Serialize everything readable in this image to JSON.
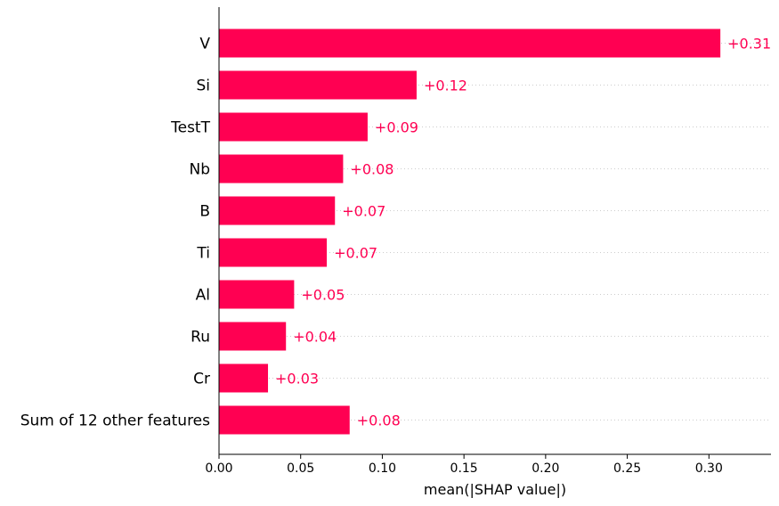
{
  "chart_data": {
    "type": "bar",
    "orientation": "horizontal",
    "categories": [
      "V",
      "Si",
      "TestT",
      "Nb",
      "B",
      "Ti",
      "Al",
      "Ru",
      "Cr",
      "Sum of 12 other features"
    ],
    "values": [
      0.307,
      0.121,
      0.091,
      0.076,
      0.071,
      0.066,
      0.046,
      0.041,
      0.03,
      0.08
    ],
    "value_labels": [
      "+0.31",
      "+0.12",
      "+0.09",
      "+0.08",
      "+0.07",
      "+0.07",
      "+0.05",
      "+0.04",
      "+0.03",
      "+0.08"
    ],
    "xlabel": "mean(|SHAP value|)",
    "ylabel": "",
    "title": "",
    "xlim": [
      0,
      0.338
    ],
    "xticks": [
      0.0,
      0.05,
      0.1,
      0.15,
      0.2,
      0.25,
      0.3
    ],
    "xtick_labels": [
      "0.00",
      "0.05",
      "0.10",
      "0.15",
      "0.20",
      "0.25",
      "0.30"
    ],
    "grid": "dotted horizontal guide lines",
    "legend": "none"
  },
  "colors": {
    "bar": "#ff0052",
    "label": "#ff0052",
    "axis": "#000000",
    "guide": "#cccccc"
  }
}
